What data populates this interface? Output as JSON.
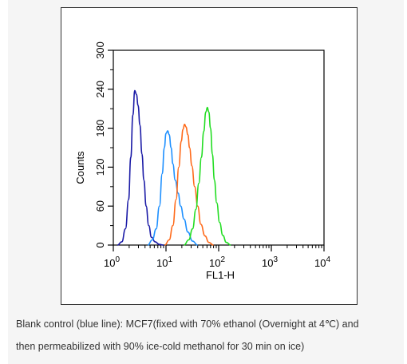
{
  "chart_data": {
    "type": "line",
    "xlabel": "FL1-H",
    "ylabel": "Counts",
    "x_scale": "log",
    "xlim": [
      1,
      10000
    ],
    "ylim": [
      0,
      300
    ],
    "x_ticks": [
      {
        "value": 1,
        "base": "10",
        "exp": "0"
      },
      {
        "value": 10,
        "base": "10",
        "exp": "1"
      },
      {
        "value": 100,
        "base": "10",
        "exp": "2"
      },
      {
        "value": 1000,
        "base": "10",
        "exp": "3"
      },
      {
        "value": 10000,
        "base": "10",
        "exp": "4"
      }
    ],
    "y_ticks": [
      0,
      60,
      120,
      180,
      240,
      300
    ],
    "grid": false,
    "series": [
      {
        "color": "#1a1aa6",
        "x": [
          1.2,
          1.45,
          1.7,
          1.95,
          2.15,
          2.35,
          2.55,
          2.75,
          2.95,
          3.2,
          3.5,
          3.8,
          4.2,
          4.7,
          5.3,
          6.2,
          7.5,
          9
        ],
        "y": [
          0,
          5,
          25,
          70,
          135,
          200,
          238,
          232,
          215,
          185,
          140,
          100,
          60,
          30,
          12,
          5,
          1,
          0
        ]
      },
      {
        "color": "#1e90ff",
        "x": [
          4.5,
          5.5,
          6.5,
          7.5,
          8.5,
          9.3,
          10,
          10.8,
          11.5,
          12.5,
          13.5,
          15,
          17,
          19,
          22,
          26,
          32,
          40
        ],
        "y": [
          0,
          8,
          25,
          60,
          110,
          150,
          172,
          176,
          170,
          150,
          125,
          100,
          80,
          60,
          40,
          20,
          6,
          0
        ]
      },
      {
        "color": "#ff6a1a",
        "x": [
          9.5,
          11.5,
          13.5,
          15.5,
          17.5,
          19.5,
          21,
          22.5,
          24,
          26,
          28,
          31,
          35,
          40,
          46,
          55,
          65,
          80
        ],
        "y": [
          0,
          8,
          30,
          70,
          120,
          160,
          178,
          186,
          182,
          170,
          150,
          122,
          90,
          60,
          32,
          14,
          4,
          0
        ]
      },
      {
        "color": "#22dd22",
        "x": [
          22,
          27,
          32,
          37,
          42,
          47,
          52,
          57,
          61,
          65,
          70,
          76,
          83,
          92,
          104,
          120,
          140,
          170
        ],
        "y": [
          0,
          8,
          25,
          55,
          95,
          135,
          175,
          205,
          212,
          205,
          180,
          140,
          100,
          65,
          35,
          15,
          4,
          0
        ]
      }
    ]
  },
  "caption": {
    "line1": "Blank control (blue line): MCF7(fixed with 70% ethanol (Overnight at 4℃) and",
    "line2": "then permeabilized with 90% ice-cold methanol for 30 min on ice)"
  }
}
